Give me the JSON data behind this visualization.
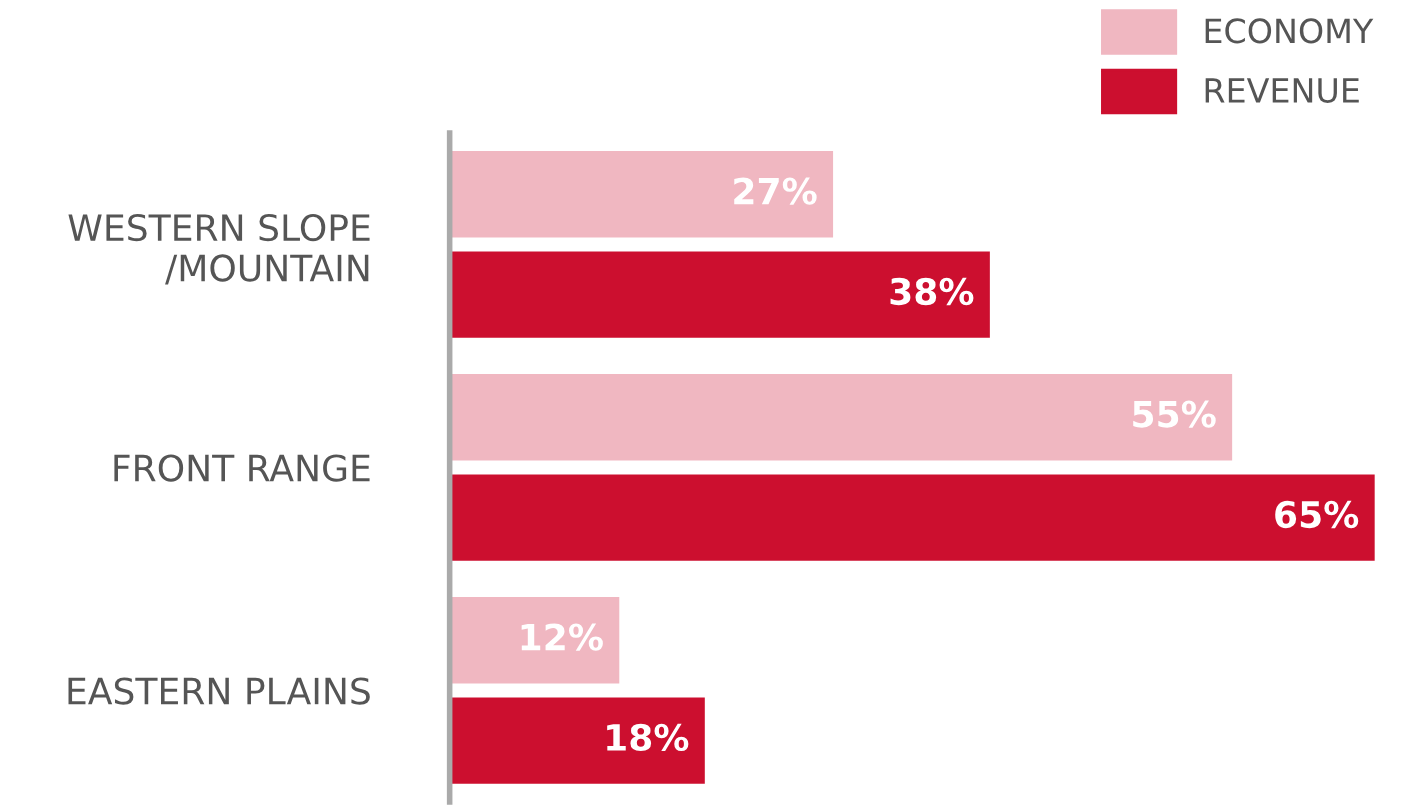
{
  "chart_data": {
    "type": "bar",
    "orientation": "horizontal",
    "categories": [
      "WESTERN SLOPE\n/MOUNTAIN",
      "FRONT RANGE",
      "EASTERN PLAINS"
    ],
    "series": [
      {
        "name": "ECONOMY",
        "color": "#f0b7c1",
        "values": [
          27,
          55,
          12
        ],
        "value_labels": [
          "27%",
          "55%",
          "12%"
        ]
      },
      {
        "name": "REVENUE",
        "color": "#cc0f2f",
        "values": [
          38,
          65,
          18
        ],
        "value_labels": [
          "38%",
          "65%",
          "18%"
        ]
      }
    ],
    "legend": "top right",
    "grid": false
  }
}
